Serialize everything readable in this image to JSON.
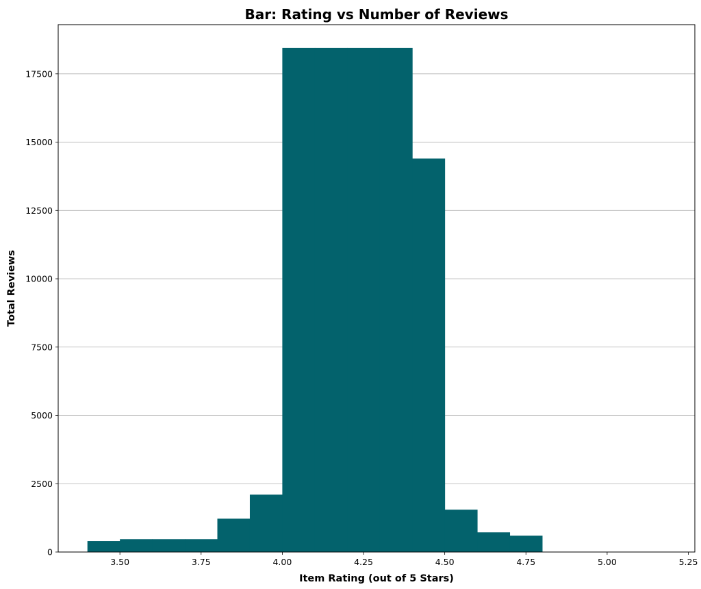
{
  "chart_data": {
    "type": "bar",
    "title": "Bar: Rating vs Number of Reviews",
    "xlabel": "Item Rating (out of 5 Stars)",
    "ylabel": "Total Reviews",
    "xlim": [
      3.31,
      5.27
    ],
    "ylim": [
      0,
      19300
    ],
    "grid": "y",
    "bar_color": "#03626C",
    "xticks": [
      "3.50",
      "3.75",
      "4.00",
      "4.25",
      "4.50",
      "4.75",
      "5.00",
      "5.25"
    ],
    "yticks": [
      "0",
      "2500",
      "5000",
      "7500",
      "10000",
      "12500",
      "15000",
      "17500"
    ],
    "bars": [
      {
        "x_start": 3.4,
        "x_end": 3.5,
        "value": 400
      },
      {
        "x_start": 3.5,
        "x_end": 3.6,
        "value": 470
      },
      {
        "x_start": 3.6,
        "x_end": 3.7,
        "value": 470
      },
      {
        "x_start": 3.7,
        "x_end": 3.8,
        "value": 470
      },
      {
        "x_start": 3.8,
        "x_end": 3.9,
        "value": 1220
      },
      {
        "x_start": 3.9,
        "x_end": 4.0,
        "value": 2100
      },
      {
        "x_start": 4.0,
        "x_end": 4.1,
        "value": 18450
      },
      {
        "x_start": 4.1,
        "x_end": 4.2,
        "value": 18450
      },
      {
        "x_start": 4.2,
        "x_end": 4.3,
        "value": 18450
      },
      {
        "x_start": 4.3,
        "x_end": 4.4,
        "value": 18450
      },
      {
        "x_start": 4.4,
        "x_end": 4.5,
        "value": 14400
      },
      {
        "x_start": 4.5,
        "x_end": 4.6,
        "value": 1550
      },
      {
        "x_start": 4.6,
        "x_end": 4.7,
        "value": 720
      },
      {
        "x_start": 4.7,
        "x_end": 4.8,
        "value": 600
      }
    ]
  }
}
